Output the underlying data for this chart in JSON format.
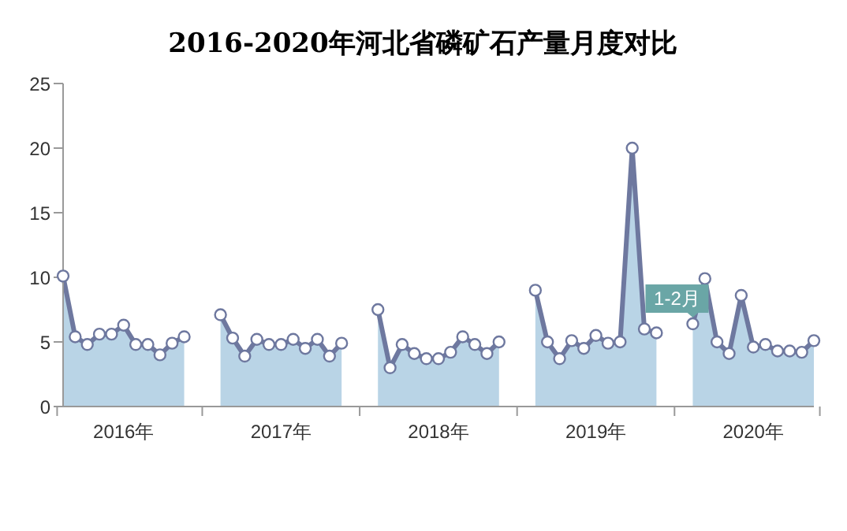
{
  "chart_data": {
    "type": "area",
    "title": "2016-2020年河北省磷矿石产量月度对比",
    "categories": [
      null,
      null,
      null,
      null,
      null,
      "2016年",
      null,
      null,
      null,
      null,
      null,
      null,
      null,
      null,
      null,
      null,
      null,
      null,
      "2017年",
      null,
      null,
      null,
      null,
      null,
      null,
      null,
      null,
      null,
      null,
      null,
      null,
      "2018年",
      null,
      null,
      null,
      null,
      null,
      null,
      null,
      null,
      null,
      null,
      null,
      null,
      "2019年",
      null,
      null,
      null,
      null,
      null,
      null,
      null,
      null,
      null,
      null,
      null,
      null,
      "2020年",
      null,
      null,
      null,
      null,
      null
    ],
    "series": [
      {
        "color": "#6e789f",
        "values": [
          10.1,
          5.4,
          4.8,
          5.6,
          5.6,
          6.3,
          4.8,
          4.8,
          4.0,
          4.9,
          5.4,
          null,
          null,
          7.1,
          5.3,
          3.9,
          5.2,
          4.8,
          4.8,
          5.2,
          4.5,
          5.2,
          3.9,
          4.9,
          null,
          null,
          7.5,
          3.0,
          4.8,
          4.1,
          3.7,
          3.7,
          4.2,
          5.4,
          4.8,
          4.1,
          5.0,
          null,
          null,
          9.0,
          5.0,
          3.7,
          5.1,
          4.5,
          5.5,
          4.9,
          5.0,
          20.0,
          6.0,
          5.7,
          null,
          null,
          6.4,
          9.9,
          5.0,
          4.1,
          8.6,
          4.6,
          4.8,
          4.3,
          4.3,
          4.2,
          5.1
        ]
      }
    ],
    "ylim": [
      0,
      25
    ],
    "yticks": [
      0,
      5,
      10,
      15,
      20,
      25
    ],
    "marker": "circle",
    "annotations": [
      "1-2月"
    ]
  }
}
